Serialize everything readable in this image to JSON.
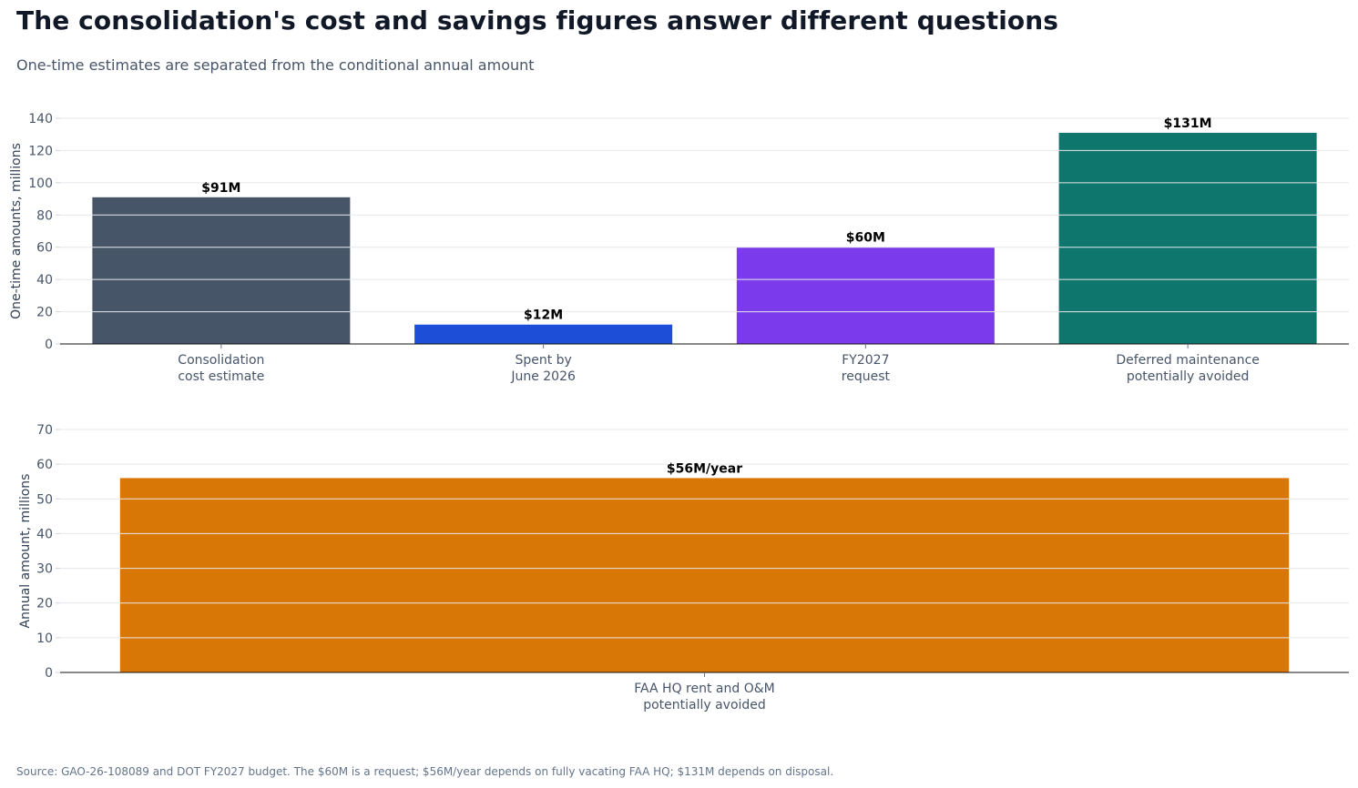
{
  "title": "The consolidation's cost and savings figures answer different questions",
  "subtitle": "One-time estimates are separated from the conditional annual amount",
  "source": "Source: GAO-26-108089 and DOT FY2027 budget. The $60M is a request; $56M/year depends on fully vacating FAA HQ; $131M depends on disposal.",
  "chart_data": [
    {
      "type": "bar",
      "ylabel": "One-time amounts, millions",
      "ylim": [
        0,
        140
      ],
      "yticks": [
        0,
        20,
        40,
        60,
        80,
        100,
        120,
        140
      ],
      "grid": true,
      "categories": [
        [
          "Consolidation",
          "cost estimate"
        ],
        [
          "Spent by",
          "June 2026"
        ],
        [
          "FY2027",
          "request"
        ],
        [
          "Deferred maintenance",
          "potentially avoided"
        ]
      ],
      "values": [
        91,
        12,
        60,
        131
      ],
      "data_labels": [
        "$91M",
        "$12M",
        "$60M",
        "$131M"
      ],
      "colors": [
        "#475569",
        "#1d4ed8",
        "#7c3aed",
        "#0f766e"
      ]
    },
    {
      "type": "bar",
      "ylabel": "Annual amount, millions",
      "ylim": [
        0,
        70
      ],
      "yticks": [
        0,
        10,
        20,
        30,
        40,
        50,
        60,
        70
      ],
      "grid": true,
      "categories": [
        [
          "FAA HQ rent and O&M",
          "potentially avoided"
        ]
      ],
      "values": [
        56
      ],
      "data_labels": [
        "$56M/year"
      ],
      "colors": [
        "#d97706"
      ]
    }
  ]
}
